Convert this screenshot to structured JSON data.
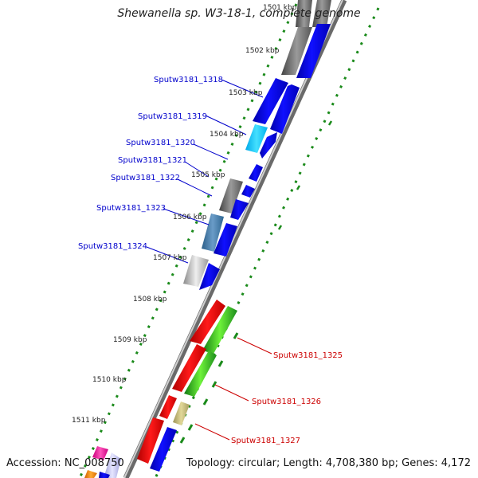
{
  "title": "Shewanella sp. W3-18-1, complete genome",
  "footer": {
    "accession": "Accession: NC_008750",
    "topology": "Topology: circular; Length: 4,708,380 bp; Genes: 4,172"
  },
  "colors": {
    "backbone": "#888888",
    "tick_dots": "#1a8a1a",
    "gc_ticks": "#1a8a1a",
    "label_blue": "#0000cc",
    "label_red": "#cc0000"
  },
  "kbp_labels": [
    {
      "text": "1501 kbp",
      "kbp": 1501
    },
    {
      "text": "1502 kbp",
      "kbp": 1502
    },
    {
      "text": "1503 kbp",
      "kbp": 1503
    },
    {
      "text": "1504 kbp",
      "kbp": 1504
    },
    {
      "text": "1505 kbp",
      "kbp": 1505
    },
    {
      "text": "1506 kbp",
      "kbp": 1506
    },
    {
      "text": "1507 kbp",
      "kbp": 1507
    },
    {
      "text": "1508 kbp",
      "kbp": 1508
    },
    {
      "text": "1509 kbp",
      "kbp": 1509
    },
    {
      "text": "1510 kbp",
      "kbp": 1510
    },
    {
      "text": "1511 kbp",
      "kbp": 1511
    }
  ],
  "gene_labels": [
    {
      "text": "Sputw3181_1318",
      "strand": "forward"
    },
    {
      "text": "Sputw3181_1319",
      "strand": "forward"
    },
    {
      "text": "Sputw3181_1320",
      "strand": "forward"
    },
    {
      "text": "Sputw3181_1321",
      "strand": "forward"
    },
    {
      "text": "Sputw3181_1322",
      "strand": "forward"
    },
    {
      "text": "Sputw3181_1323",
      "strand": "forward"
    },
    {
      "text": "Sputw3181_1324",
      "strand": "forward"
    },
    {
      "text": "Sputw3181_1325",
      "strand": "reverse"
    },
    {
      "text": "Sputw3181_1326",
      "strand": "reverse"
    },
    {
      "text": "Sputw3181_1327",
      "strand": "reverse"
    }
  ]
}
